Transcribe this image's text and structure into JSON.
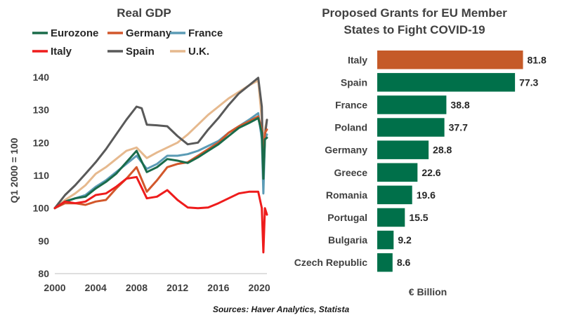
{
  "source": "Sources: Haver Analytics, Statista",
  "chart_data": [
    {
      "type": "line",
      "title": "Real GDP",
      "xlabel": "",
      "ylabel": "Q1 2000 = 100",
      "xlim": [
        2000,
        2020.75
      ],
      "ylim": [
        80,
        140
      ],
      "x_ticks": [
        "2000",
        "2004",
        "2008",
        "2012",
        "2016",
        "2020"
      ],
      "y_ticks": [
        "80",
        "90",
        "100",
        "110",
        "120",
        "130",
        "140"
      ],
      "grid": false,
      "legend_position": "top",
      "series": [
        {
          "name": "U.K.",
          "color": "#E6B98E",
          "points": [
            [
              2000,
              100
            ],
            [
              2001,
              102.5
            ],
            [
              2002,
              104.5
            ],
            [
              2003,
              107
            ],
            [
              2004,
              110.5
            ],
            [
              2005,
              112.5
            ],
            [
              2006,
              115
            ],
            [
              2007,
              117.5
            ],
            [
              2008,
              118.5
            ],
            [
              2009,
              115.3
            ],
            [
              2010,
              117
            ],
            [
              2011,
              118.5
            ],
            [
              2012,
              120
            ],
            [
              2013,
              122.5
            ],
            [
              2014,
              125.5
            ],
            [
              2015,
              128.5
            ],
            [
              2016,
              131
            ],
            [
              2017,
              133.5
            ],
            [
              2018,
              135.5
            ],
            [
              2019,
              137.5
            ],
            [
              2019.9,
              139
            ],
            [
              2020.25,
              127
            ],
            [
              2020.4,
              111
            ],
            [
              2020.55,
              124
            ],
            [
              2020.75,
              127
            ]
          ]
        },
        {
          "name": "Spain",
          "color": "#595959",
          "points": [
            [
              2000,
              100
            ],
            [
              2001,
              104
            ],
            [
              2002,
              107
            ],
            [
              2003,
              110.5
            ],
            [
              2004,
              114
            ],
            [
              2005,
              118
            ],
            [
              2006,
              122.5
            ],
            [
              2007,
              127
            ],
            [
              2008,
              131
            ],
            [
              2008.5,
              130.5
            ],
            [
              2009,
              125.5
            ],
            [
              2010,
              125.3
            ],
            [
              2011,
              125
            ],
            [
              2012,
              122
            ],
            [
              2013,
              119.5
            ],
            [
              2014,
              120
            ],
            [
              2015,
              124
            ],
            [
              2016,
              127.5
            ],
            [
              2017,
              131.5
            ],
            [
              2018,
              135
            ],
            [
              2019,
              137.5
            ],
            [
              2019.9,
              139.8
            ],
            [
              2020.25,
              131
            ],
            [
              2020.4,
              108
            ],
            [
              2020.55,
              122
            ],
            [
              2020.75,
              127
            ]
          ]
        },
        {
          "name": "France",
          "color": "#5B9BB5",
          "points": [
            [
              2000,
              100
            ],
            [
              2001,
              102
            ],
            [
              2002,
              103
            ],
            [
              2003,
              104
            ],
            [
              2004,
              106.5
            ],
            [
              2005,
              108.5
            ],
            [
              2006,
              111
            ],
            [
              2007,
              113.5
            ],
            [
              2008,
              116
            ],
            [
              2009,
              112
            ],
            [
              2010,
              113.5
            ],
            [
              2011,
              116
            ],
            [
              2012,
              116
            ],
            [
              2013,
              116.5
            ],
            [
              2014,
              117.5
            ],
            [
              2015,
              119
            ],
            [
              2016,
              120.5
            ],
            [
              2017,
              123
            ],
            [
              2018,
              125
            ],
            [
              2019,
              127
            ],
            [
              2019.9,
              129
            ],
            [
              2020.25,
              121
            ],
            [
              2020.4,
              104.5
            ],
            [
              2020.55,
              121
            ],
            [
              2020.75,
              122.5
            ]
          ]
        },
        {
          "name": "Germany",
          "color": "#D2572B",
          "points": [
            [
              2000,
              100
            ],
            [
              2001,
              101.5
            ],
            [
              2002,
              101.5
            ],
            [
              2003,
              101
            ],
            [
              2004,
              102
            ],
            [
              2005,
              102.5
            ],
            [
              2006,
              106
            ],
            [
              2007,
              109
            ],
            [
              2008,
              112.5
            ],
            [
              2009,
              105
            ],
            [
              2010,
              108.5
            ],
            [
              2011,
              112.5
            ],
            [
              2012,
              113.5
            ],
            [
              2013,
              114
            ],
            [
              2014,
              116
            ],
            [
              2015,
              118
            ],
            [
              2016,
              120
            ],
            [
              2017,
              123
            ],
            [
              2018,
              125
            ],
            [
              2019,
              126.5
            ],
            [
              2019.9,
              128
            ],
            [
              2020.25,
              124
            ],
            [
              2020.4,
              112
            ],
            [
              2020.55,
              123
            ],
            [
              2020.75,
              124
            ]
          ]
        },
        {
          "name": "Eurozone",
          "color": "#1A6B4A",
          "points": [
            [
              2000,
              100
            ],
            [
              2001,
              102
            ],
            [
              2002,
              103
            ],
            [
              2003,
              103.5
            ],
            [
              2004,
              106
            ],
            [
              2005,
              108
            ],
            [
              2006,
              110.5
            ],
            [
              2007,
              114
            ],
            [
              2008,
              117.5
            ],
            [
              2009,
              111
            ],
            [
              2010,
              112.5
            ],
            [
              2011,
              115
            ],
            [
              2012,
              114.5
            ],
            [
              2013,
              113.8
            ],
            [
              2014,
              115.5
            ],
            [
              2015,
              117.5
            ],
            [
              2016,
              119.5
            ],
            [
              2017,
              122
            ],
            [
              2018,
              124.5
            ],
            [
              2019,
              126
            ],
            [
              2019.9,
              127.5
            ],
            [
              2020.25,
              123
            ],
            [
              2020.4,
              109
            ],
            [
              2020.55,
              121
            ],
            [
              2020.75,
              121.5
            ]
          ]
        },
        {
          "name": "Italy",
          "color": "#EE1C1C",
          "points": [
            [
              2000,
              100
            ],
            [
              2001,
              102
            ],
            [
              2002,
              101.5
            ],
            [
              2003,
              102
            ],
            [
              2004,
              104
            ],
            [
              2005,
              104.5
            ],
            [
              2006,
              106.5
            ],
            [
              2007,
              109
            ],
            [
              2008,
              109.5
            ],
            [
              2009,
              103
            ],
            [
              2010,
              103.5
            ],
            [
              2011,
              105.5
            ],
            [
              2012,
              102.5
            ],
            [
              2013,
              100.2
            ],
            [
              2014,
              100
            ],
            [
              2015,
              100.2
            ],
            [
              2016,
              101.5
            ],
            [
              2017,
              103
            ],
            [
              2018,
              104.5
            ],
            [
              2019,
              105
            ],
            [
              2019.9,
              105
            ],
            [
              2020.25,
              100
            ],
            [
              2020.4,
              86.5
            ],
            [
              2020.55,
              100
            ],
            [
              2020.75,
              98
            ]
          ]
        }
      ]
    },
    {
      "type": "bar",
      "orientation": "horizontal",
      "title": "Proposed Grants for EU Member States to Fight COVID-19",
      "title_lines": [
        "Proposed Grants for EU Member",
        "States to Fight COVID-19"
      ],
      "xlabel": "€ Billion",
      "ylabel": "",
      "xlim": [
        0,
        82
      ],
      "categories": [
        "Italy",
        "Spain",
        "France",
        "Poland",
        "Germany",
        "Greece",
        "Romania",
        "Portugal",
        "Bulgaria",
        "Czech Republic"
      ],
      "values": [
        81.8,
        77.3,
        38.8,
        37.7,
        28.8,
        22.6,
        19.6,
        15.5,
        9.2,
        8.6
      ],
      "value_labels": [
        "81.8",
        "77.3",
        "38.8",
        "37.7",
        "28.8",
        "22.6",
        "19.6",
        "15.5",
        "9.2",
        "8.6"
      ],
      "colors": {
        "highlight": "#C55A28",
        "default": "#00704A"
      },
      "highlight_category": "Italy"
    }
  ]
}
